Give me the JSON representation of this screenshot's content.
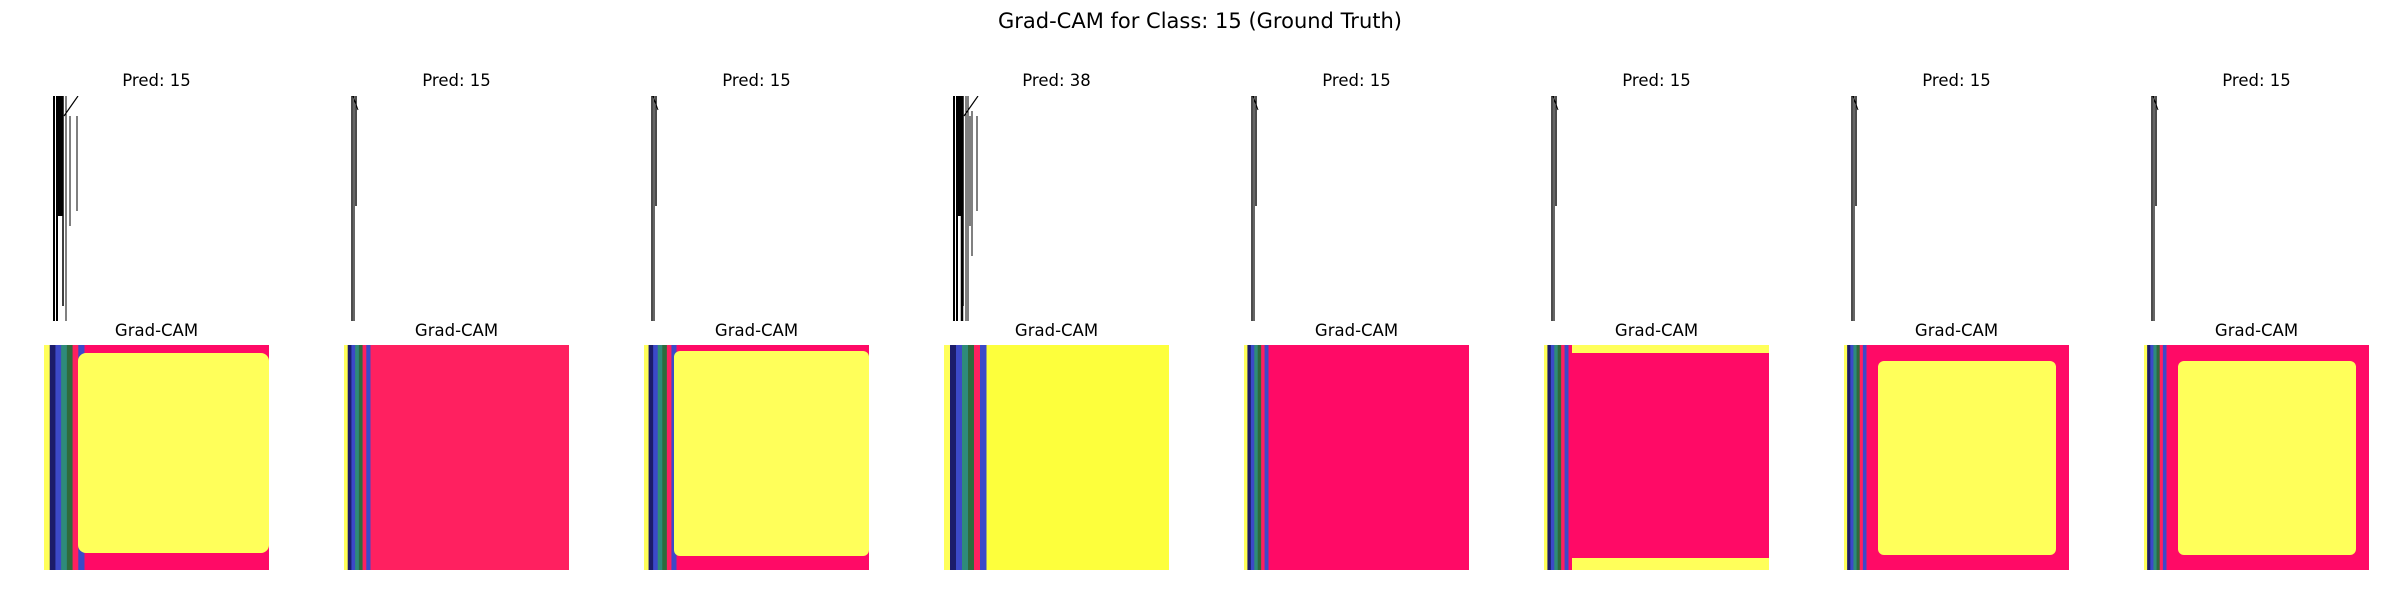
{
  "figure": {
    "suptitle": "Grad-CAM for Class: 15 (Ground Truth)"
  },
  "chart_data": {
    "type": "image-grid",
    "title": "Grad-CAM for Class: 15 (Ground Truth)",
    "ground_truth_class": 15,
    "rows": [
      "input",
      "gradcam"
    ],
    "columns": 8,
    "panels": [
      {
        "pred_title": "Pred: 15",
        "pred": 15,
        "cam_title": "Grad-CAM",
        "cam_style": "yellow-block-left-strip",
        "stroke_density": "heavy"
      },
      {
        "pred_title": "Pred: 15",
        "pred": 15,
        "cam_title": "Grad-CAM",
        "cam_style": "pink-fill",
        "stroke_density": "light"
      },
      {
        "pred_title": "Pred: 15",
        "pred": 15,
        "cam_title": "Grad-CAM",
        "cam_style": "yellow-block",
        "stroke_density": "light"
      },
      {
        "pred_title": "Pred: 38",
        "pred": 38,
        "cam_title": "Grad-CAM",
        "cam_style": "yellow-fill-wide-strip",
        "stroke_density": "heavy"
      },
      {
        "pred_title": "Pred: 15",
        "pred": 15,
        "cam_title": "Grad-CAM",
        "cam_style": "deep-pink-fill",
        "stroke_density": "light"
      },
      {
        "pred_title": "Pred: 15",
        "pred": 15,
        "cam_title": "Grad-CAM",
        "cam_style": "pink-with-yellow-bars",
        "stroke_density": "light"
      },
      {
        "pred_title": "Pred: 15",
        "pred": 15,
        "cam_title": "Grad-CAM",
        "cam_style": "yellow-square-pink-border",
        "stroke_density": "light"
      },
      {
        "pred_title": "Pred: 15",
        "pred": 15,
        "cam_title": "Grad-CAM",
        "cam_style": "yellow-square-pink-border",
        "stroke_density": "light"
      }
    ],
    "colors": {
      "pink": "#ff0a66",
      "pink_soft": "#ff2060",
      "yellow": "#ffff5a",
      "yellow_bright": "#fdff3c",
      "teal": "#2e8b7a",
      "blue": "#3c49c8",
      "navy": "#1c1c6a",
      "green": "#2f6b3c"
    }
  }
}
